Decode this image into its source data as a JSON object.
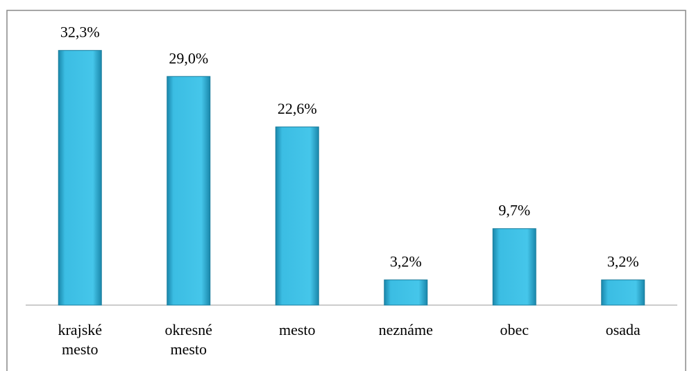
{
  "chart_data": {
    "type": "bar",
    "categories": [
      "krajské mesto",
      "okresné mesto",
      "mesto",
      "neznáme",
      "obec",
      "osada"
    ],
    "values": [
      32.3,
      29.0,
      22.6,
      3.2,
      9.7,
      3.2
    ],
    "value_labels": [
      "32,3%",
      "29,0%",
      "22,6%",
      "3,2%",
      "9,7%",
      "3,2%"
    ],
    "color": "#3bbde3",
    "ylim": [
      0,
      35
    ]
  }
}
